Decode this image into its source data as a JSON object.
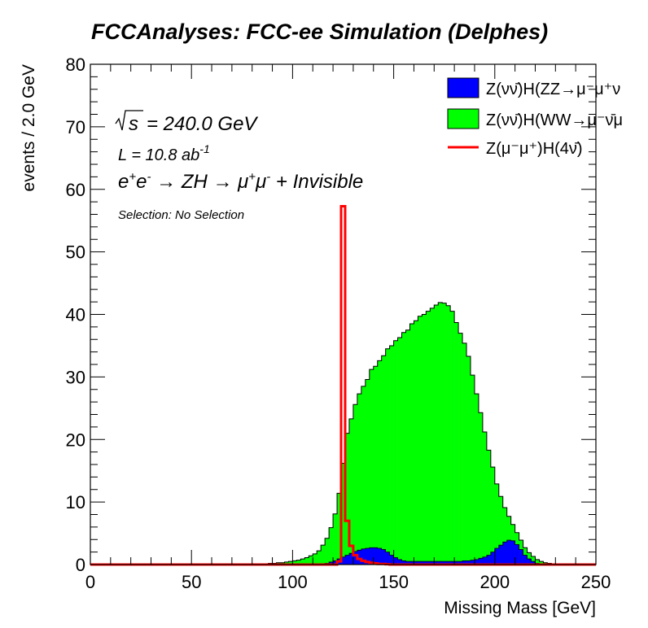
{
  "chart_data": {
    "type": "histogram",
    "stacked": true,
    "title": "FCCAnalyses: FCC-ee Simulation (Delphes)",
    "xlabel": "Missing Mass [GeV]",
    "ylabel": "events / 2.0 GeV",
    "xlim": [
      0,
      250
    ],
    "ylim": [
      0,
      80
    ],
    "bin_width": 2.0,
    "x_ticks": [
      "0",
      "50",
      "100",
      "150",
      "200",
      "250"
    ],
    "y_ticks": [
      "0",
      "10",
      "20",
      "30",
      "40",
      "50",
      "60",
      "70",
      "80"
    ],
    "annotations": {
      "sqrt_s": "= 240.0 GeV",
      "lumi": "L = 10.8 ab",
      "lumi_exp": "-1",
      "process": "e e → ZH → μ μ + Invisible",
      "selection": "Selection: No Selection"
    },
    "legend": {
      "placement": "top-right",
      "entries": [
        "Z(νν̄)H(ZZ→μ⁻μ⁺ν",
        "Z(νν̄)H(WW→μ⁻ν̄μ",
        "Z(μ⁻μ⁺)H(4ν̄)"
      ]
    },
    "colors": {
      "zz": "#0000ff",
      "ww": "#00ff00",
      "sig": "#ff0000",
      "outline": "#000000"
    },
    "bin_edges": [
      76,
      78,
      80,
      82,
      84,
      86,
      88,
      90,
      92,
      94,
      96,
      98,
      100,
      102,
      104,
      106,
      108,
      110,
      112,
      114,
      116,
      118,
      120,
      122,
      124,
      126,
      128,
      130,
      132,
      134,
      136,
      138,
      140,
      142,
      144,
      146,
      148,
      150,
      152,
      154,
      156,
      158,
      160,
      162,
      164,
      166,
      168,
      170,
      172,
      174,
      176,
      178,
      180,
      182,
      184,
      186,
      188,
      190,
      192,
      194,
      196,
      198,
      200,
      202,
      204,
      206,
      208,
      210,
      212,
      214,
      216,
      218,
      220,
      222,
      224,
      226,
      228,
      230,
      232,
      234,
      236
    ],
    "series": [
      {
        "name": "Z(νν̄)H(ZZ→μ⁻μ⁺ν",
        "key": "zz",
        "values": [
          0,
          0,
          0,
          0,
          0,
          0,
          0,
          0,
          0,
          0,
          0,
          0,
          0,
          0,
          0,
          0,
          0,
          0,
          0,
          0.1,
          0.2,
          0.4,
          0.6,
          0.9,
          1.2,
          1.5,
          1.8,
          2.1,
          2.3,
          2.5,
          2.6,
          2.7,
          2.7,
          2.6,
          2.4,
          2.0,
          1.5,
          1.1,
          0.8,
          0.6,
          0.5,
          0.5,
          0.5,
          0.5,
          0.5,
          0.5,
          0.5,
          0.5,
          0.5,
          0.5,
          0.5,
          0.5,
          0.5,
          0.5,
          0.6,
          0.6,
          0.7,
          0.8,
          1.0,
          1.2,
          1.5,
          2.0,
          2.6,
          3.1,
          3.6,
          3.9,
          3.8,
          3.2,
          2.4,
          1.5,
          0.9,
          0.5,
          0.2,
          0.1,
          0,
          0,
          0,
          0,
          0,
          0
        ]
      },
      {
        "name": "Z(νν̄)H(WW→μ⁻ν̄μ",
        "key": "ww",
        "values": [
          0,
          0,
          0,
          0,
          0.1,
          0.1,
          0.2,
          0.2,
          0.3,
          0.3,
          0.4,
          0.5,
          0.6,
          0.7,
          0.9,
          1.1,
          1.4,
          1.7,
          2.2,
          3.0,
          4.0,
          5.5,
          7.5,
          10.5,
          15.0,
          19.5,
          21.5,
          23.5,
          25.0,
          26.0,
          27.0,
          28.5,
          29.0,
          30.0,
          31.0,
          32.5,
          33.5,
          34.7,
          35.5,
          36.5,
          37.0,
          38.0,
          38.5,
          39.2,
          39.5,
          40.0,
          40.5,
          41.0,
          41.4,
          41.3,
          40.9,
          40.0,
          38.2,
          36.5,
          34.8,
          32.7,
          29.6,
          26.5,
          23.3,
          20.0,
          16.8,
          13.6,
          10.3,
          7.8,
          5.5,
          3.8,
          2.6,
          1.9,
          1.5,
          1.2,
          1.0,
          0.8,
          0.6,
          0.4,
          0.3,
          0.2,
          0.1,
          0.1,
          0,
          0
        ]
      },
      {
        "name": "Z(μ⁻μ⁺)H(4ν̄)",
        "key": "sig",
        "values": [
          0,
          0,
          0,
          0,
          0,
          0,
          0,
          0,
          0,
          0,
          0,
          0,
          0,
          0,
          0,
          0,
          0,
          0,
          0,
          0,
          0,
          0,
          0,
          0.5,
          57.3,
          7.0,
          3.0,
          1.5,
          0.9,
          0.6,
          0.4,
          0.3,
          0.2,
          0.1,
          0.1,
          0.05,
          0,
          0,
          0,
          0,
          0,
          0,
          0,
          0,
          0,
          0,
          0,
          0,
          0,
          0,
          0,
          0,
          0,
          0,
          0,
          0,
          0,
          0,
          0,
          0,
          0,
          0,
          0,
          0,
          0,
          0,
          0,
          0,
          0,
          0,
          0,
          0,
          0,
          0,
          0,
          0,
          0,
          0,
          0,
          0
        ]
      }
    ]
  }
}
